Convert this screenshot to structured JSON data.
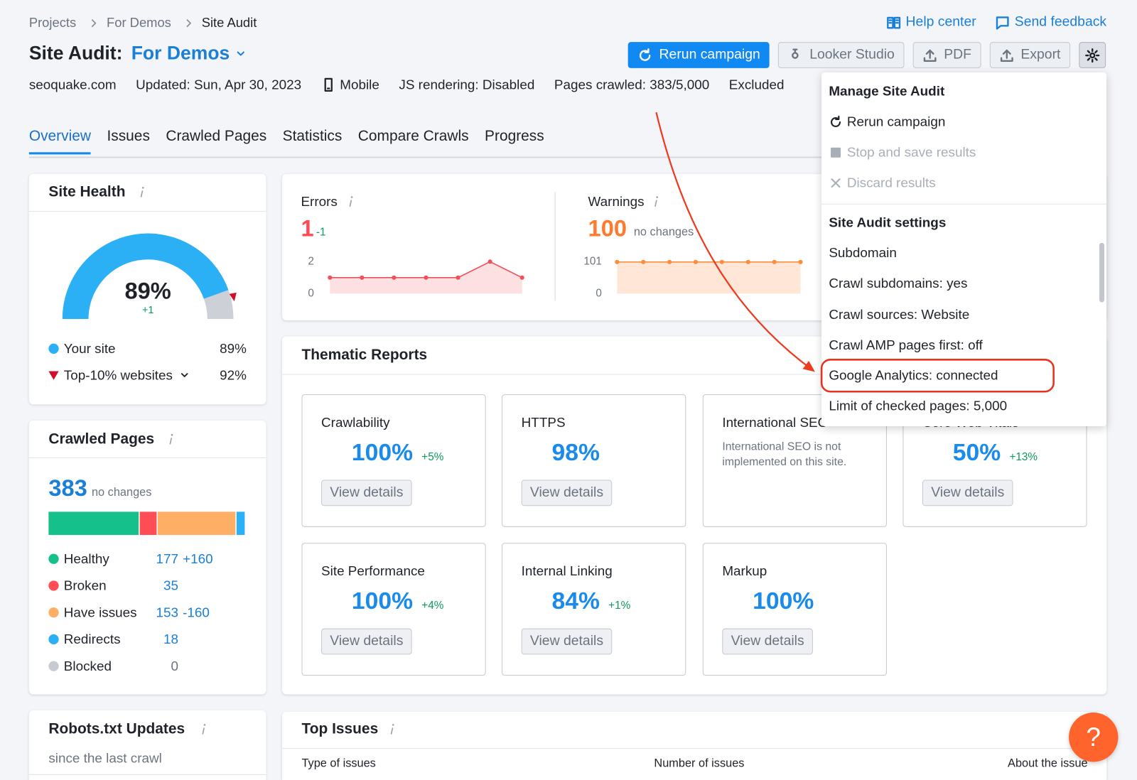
{
  "breadcrumbs": [
    "Projects",
    "For Demos",
    "Site Audit"
  ],
  "header": {
    "title": "Site Audit:",
    "project": "For Demos",
    "links": [
      "Help center",
      "Send feedback"
    ],
    "buttons": [
      "Rerun campaign",
      "Looker Studio",
      "PDF",
      "Export"
    ]
  },
  "meta": [
    "seoquake.com",
    "Updated: Sun, Apr 30, 2023",
    "Mobile",
    "JS rendering: Disabled",
    "Pages crawled: 383/5,000",
    "Excluded"
  ],
  "tabs": [
    "Overview",
    "Issues",
    "Crawled Pages",
    "Statistics",
    "Compare Crawls",
    "Progress"
  ],
  "site_health": {
    "title": "Site Health",
    "score": "89%",
    "delta": "+1",
    "legend": [
      {
        "label": "Your site",
        "value": "89%"
      },
      {
        "label": "Top-10% websites",
        "value": "92%"
      }
    ]
  },
  "errors": {
    "title": "Errors",
    "value": "1",
    "delta": "-1",
    "chart": {
      "values": [
        1,
        1,
        1,
        1,
        1,
        2,
        1
      ],
      "ylim": [
        0,
        2
      ],
      "yticks": [
        0,
        2
      ]
    }
  },
  "warnings": {
    "title": "Warnings",
    "value": "100",
    "delta": "no changes",
    "chart": {
      "values": [
        100,
        100,
        100,
        100,
        100,
        100,
        100,
        100
      ],
      "ylim": [
        0,
        101
      ],
      "yticks": [
        0,
        101
      ]
    }
  },
  "crawled_pages": {
    "title": "Crawled Pages",
    "total": 383,
    "delta": "no changes",
    "rows": [
      {
        "label": "Healthy",
        "value": 177,
        "delta": "+160",
        "color": "#16c08a"
      },
      {
        "label": "Broken",
        "value": 35,
        "color": "#ff4d55"
      },
      {
        "label": "Have issues",
        "value": 153,
        "delta": "-160",
        "color": "#ffae65"
      },
      {
        "label": "Redirects",
        "value": 18,
        "color": "#2cb0f5"
      },
      {
        "label": "Blocked",
        "value": 0,
        "color": "#c7cbd1"
      }
    ]
  },
  "thematic_reports": {
    "title": "Thematic Reports",
    "reports": [
      {
        "title": "Crawlability",
        "value": "100%",
        "delta": "+5%",
        "button": "View details"
      },
      {
        "title": "HTTPS",
        "value": "98%",
        "button": "View details"
      },
      {
        "title": "International SEO",
        "note": "International SEO is not implemented on this site."
      },
      {
        "title": "Core Web Vitals",
        "value": "50%",
        "delta": "+13%",
        "button": "View details"
      },
      {
        "title": "Site Performance",
        "value": "100%",
        "delta": "+4%",
        "button": "View details"
      },
      {
        "title": "Internal Linking",
        "value": "84%",
        "delta": "+1%",
        "button": "View details"
      },
      {
        "title": "Markup",
        "value": "100%",
        "button": "View details"
      }
    ]
  },
  "robots": {
    "title": "Robots.txt Updates",
    "subtitle": "since the last crawl"
  },
  "top_issues": {
    "title": "Top Issues",
    "columns": [
      "Type of issues",
      "Number of issues",
      "About the issue"
    ]
  },
  "dropdown": {
    "manage": {
      "title": "Manage Site Audit",
      "items": [
        {
          "label": "Rerun campaign",
          "icon": "rerun"
        },
        {
          "label": "Stop and save results",
          "icon": "stop",
          "disabled": true
        },
        {
          "label": "Discard results",
          "icon": "close",
          "disabled": true
        }
      ]
    },
    "settings": {
      "title": "Site Audit settings",
      "items": [
        "Subdomain",
        "Crawl subdomains: yes",
        "Crawl sources: Website",
        "Crawl AMP pages first: off",
        "Google Analytics: connected",
        "Limit of checked pages: 5,000"
      ],
      "highlight": 4
    }
  },
  "help_button": "?"
}
